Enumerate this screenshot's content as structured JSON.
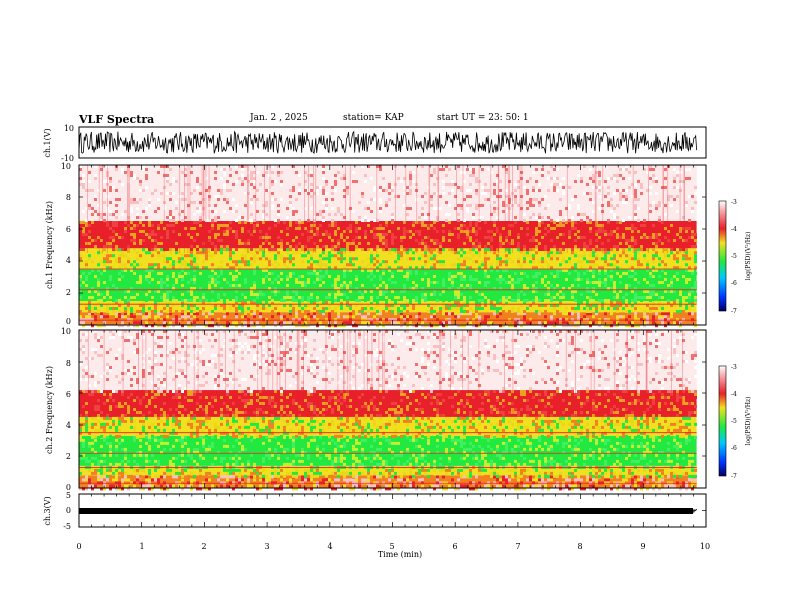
{
  "header": {
    "title": "VLF Spectra",
    "date": "Jan. 2 , 2025",
    "station": "station= KAP",
    "start_ut": "start UT = 23: 50: 1"
  },
  "colors": {
    "background": "#ffffff",
    "axis": "#000000",
    "waveform": "#000000",
    "spec_low": "#22e840",
    "spec_mid": "#f0e020",
    "spec_high": "#e8202a"
  },
  "chart_data": [
    {
      "id": "ch1_waveform",
      "type": "line",
      "ylabel": "ch.1(V)",
      "ylim": [
        -10,
        10
      ],
      "yticks": [
        "10",
        "-10"
      ],
      "xlim": [
        0,
        10
      ],
      "mean": 0,
      "amplitude_range": [
        -7,
        7
      ],
      "samples": 700
    },
    {
      "id": "ch1_spectrogram",
      "type": "heatmap",
      "ylabel": "ch.1\nFrequency (kHz)",
      "ylim": [
        0,
        10
      ],
      "yticks": [
        "0",
        "2",
        "4",
        "6",
        "8",
        "10"
      ],
      "xlim": [
        0,
        9.85
      ],
      "bands": [
        {
          "from_khz": 0,
          "to_khz": 0.8,
          "level": "mixed"
        },
        {
          "from_khz": 0.8,
          "to_khz": 1.5,
          "level": "yellow"
        },
        {
          "from_khz": 1.5,
          "to_khz": 3.5,
          "level": "green"
        },
        {
          "from_khz": 3.5,
          "to_khz": 4.8,
          "level": "yellow"
        },
        {
          "from_khz": 4.8,
          "to_khz": 6.5,
          "level": "red"
        },
        {
          "from_khz": 6.5,
          "to_khz": 10,
          "level": "sparse-red"
        }
      ],
      "colorbar": {
        "label": "log(PSD)(V²/Hz)",
        "range": [
          -7,
          -3
        ],
        "ticks": [
          "-3",
          "-4",
          "-5",
          "-6",
          "-7"
        ]
      }
    },
    {
      "id": "ch2_spectrogram",
      "type": "heatmap",
      "ylabel": "ch.2\nFrequency (kHz)",
      "ylim": [
        0,
        10
      ],
      "yticks": [
        "0",
        "2",
        "4",
        "6",
        "8",
        "10"
      ],
      "xlim": [
        0,
        9.85
      ],
      "bands": [
        {
          "from_khz": 0,
          "to_khz": 0.8,
          "level": "mixed"
        },
        {
          "from_khz": 0.8,
          "to_khz": 1.4,
          "level": "yellow"
        },
        {
          "from_khz": 1.4,
          "to_khz": 3.3,
          "level": "green"
        },
        {
          "from_khz": 3.3,
          "to_khz": 4.5,
          "level": "yellow"
        },
        {
          "from_khz": 4.5,
          "to_khz": 6.2,
          "level": "red"
        },
        {
          "from_khz": 6.2,
          "to_khz": 10,
          "level": "sparse-red"
        }
      ],
      "colorbar": {
        "label": "log(PSD)(V²/Hz)",
        "range": [
          -7,
          -3
        ],
        "ticks": [
          "-3",
          "-4",
          "-5",
          "-6",
          "-7"
        ]
      }
    },
    {
      "id": "ch3_waveform",
      "type": "line",
      "ylabel": "ch.3(V)",
      "ylim": [
        -5,
        5
      ],
      "yticks": [
        "5",
        "0",
        "-5"
      ],
      "xlim": [
        0,
        10
      ],
      "mean": 0,
      "amplitude_range": [
        -0.5,
        0.5
      ],
      "samples": 700,
      "xlabel": "Time (min)",
      "xticks": [
        "0",
        "1",
        "2",
        "3",
        "4",
        "5",
        "6",
        "7",
        "8",
        "9",
        "10"
      ]
    }
  ]
}
